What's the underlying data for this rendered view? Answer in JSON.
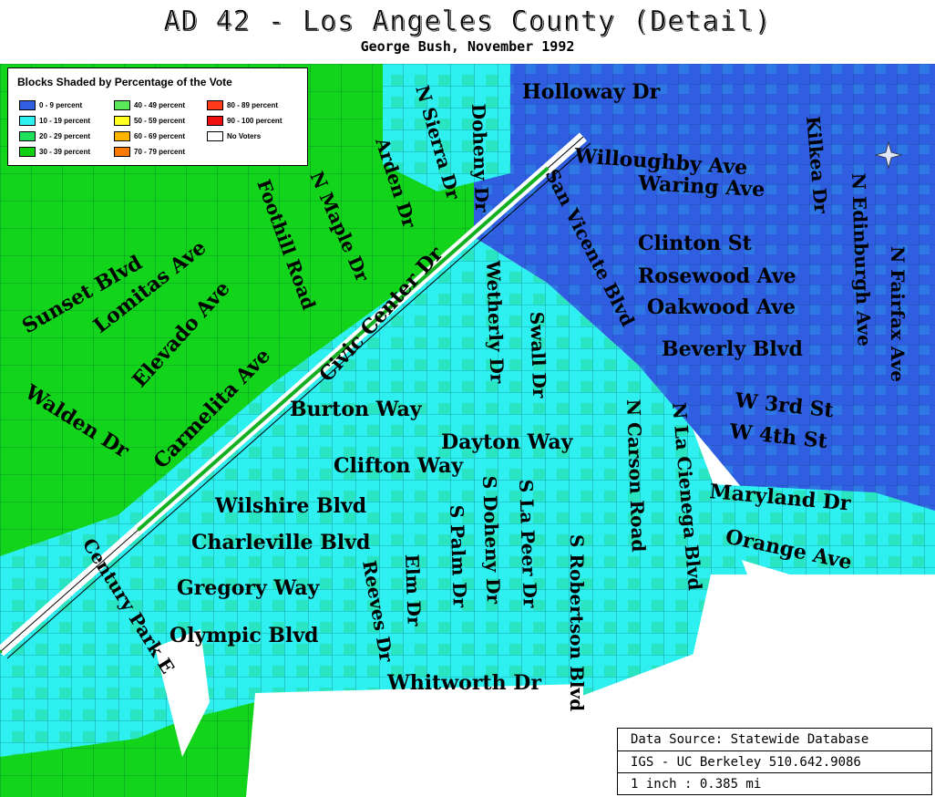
{
  "title": "AD 42 - Los Angeles County (Detail)",
  "subtitle": "George Bush, November 1992",
  "legend": {
    "title": "Blocks Shaded by Percentage of the Vote",
    "items": [
      {
        "label": "0 - 9 percent",
        "color": "#2f5fe0"
      },
      {
        "label": "10 - 19 percent",
        "color": "#2ef0f0"
      },
      {
        "label": "20 - 29 percent",
        "color": "#1fe05a"
      },
      {
        "label": "30 - 39 percent",
        "color": "#10d010"
      },
      {
        "label": "40 - 49 percent",
        "color": "#58e858"
      },
      {
        "label": "50 - 59 percent",
        "color": "#ffff20"
      },
      {
        "label": "60 - 69 percent",
        "color": "#ffb400"
      },
      {
        "label": "70 - 79 percent",
        "color": "#ff7a00"
      },
      {
        "label": "80 - 89 percent",
        "color": "#ff3a1a"
      },
      {
        "label": "90 - 100 percent",
        "color": "#ee1010"
      },
      {
        "label": "No Voters",
        "color": "#ffffff"
      }
    ]
  },
  "streets": [
    "Holloway Dr",
    "Willoughby Ave",
    "Waring Ave",
    "Clinton St",
    "Rosewood Ave",
    "Oakwood Ave",
    "Beverly Blvd",
    "W 3rd St",
    "W 4th St",
    "Maryland Dr",
    "Orange Ave",
    "N Fairfax Ave",
    "N Edinburgh Ave",
    "Kilkea Dr",
    "San Vicente Blvd",
    "N La Cienega Blvd",
    "N Carson Road",
    "S Robertson Blvd",
    "S La Peer Dr",
    "Swall Dr",
    "Wetherly Dr",
    "Doheny Dr",
    "S Doheny Dr",
    "S Palm Dr",
    "Elm Dr",
    "Reeves Dr",
    "Whitworth Dr",
    "Olympic Blvd",
    "Gregory Way",
    "Charleville Blvd",
    "Wilshire Blvd",
    "Clifton Way",
    "Dayton Way",
    "Burton Way",
    "Civic Center Dr",
    "N Maple Dr",
    "Foothill Road",
    "Arden Dr",
    "N Sierra Dr",
    "Carmelita Ave",
    "Elevado Ave",
    "Lomitas Ave",
    "Sunset Blvd",
    "Walden Dr",
    "Century Park E"
  ],
  "source": {
    "line1": "Data Source: Statewide Database",
    "line2": "IGS - UC Berkeley 510.642.9086",
    "line3": "1 inch : 0.385 mi"
  }
}
